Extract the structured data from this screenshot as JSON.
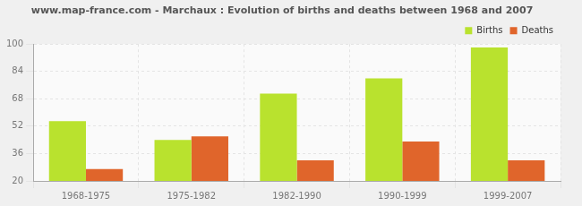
{
  "chart_data": {
    "type": "bar",
    "title": "www.map-france.com - Marchaux : Evolution of births and deaths between 1968 and 2007",
    "categories": [
      "1968-1975",
      "1975-1982",
      "1982-1990",
      "1990-1999",
      "1999-2007"
    ],
    "series": [
      {
        "name": "Births",
        "color": "#b9e22e",
        "values": [
          55,
          44,
          71,
          80,
          98
        ]
      },
      {
        "name": "Deaths",
        "color": "#e0652b",
        "values": [
          27,
          46,
          32,
          43,
          32
        ]
      }
    ],
    "ylim": [
      20,
      100
    ],
    "yticks": [
      20,
      36,
      52,
      68,
      84,
      100
    ],
    "grid": true,
    "legend": "top-right"
  }
}
